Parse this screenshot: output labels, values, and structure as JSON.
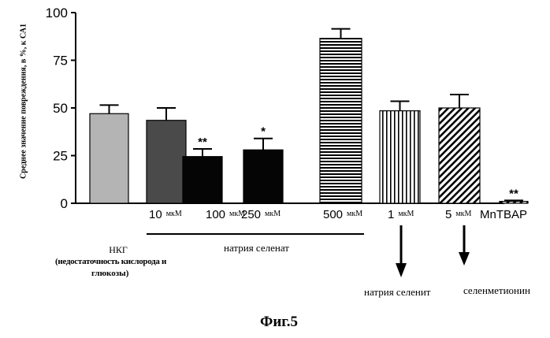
{
  "chart_data": {
    "type": "bar",
    "ylabel": "Среднее значение повреждения, в %, к СА1",
    "ylim": [
      0,
      100
    ],
    "yticks": [
      0,
      25,
      50,
      75,
      100
    ],
    "categories": [
      {
        "label": "НКГ",
        "label_parts": [
          "",
          ""
        ],
        "value": 47,
        "error": 4.5,
        "sig": "",
        "fill": "light-gray"
      },
      {
        "label": "10 мкМ",
        "label_parts": [
          "10",
          "мкМ"
        ],
        "value": 43.5,
        "error": 6.5,
        "sig": "",
        "fill": "dark-gray"
      },
      {
        "label": "100 мкМ",
        "label_parts": [
          "100",
          "мкМ"
        ],
        "value": 24.5,
        "error": 4,
        "sig": "**",
        "fill": "black"
      },
      {
        "label": "250 мкМ",
        "label_parts": [
          "250",
          "мкМ"
        ],
        "value": 28,
        "error": 6,
        "sig": "*",
        "fill": "black"
      },
      {
        "label": "500 мкМ",
        "label_parts": [
          "500",
          "мкМ"
        ],
        "value": 86.5,
        "error": 5,
        "sig": "",
        "fill": "horizontal-stripes"
      },
      {
        "label": "1 мкМ",
        "label_parts": [
          "1",
          "мкМ"
        ],
        "value": 48.5,
        "error": 5,
        "sig": "",
        "fill": "vertical-stripes"
      },
      {
        "label": "5 мкМ",
        "label_parts": [
          "5",
          "мкМ"
        ],
        "value": 50,
        "error": 7,
        "sig": "",
        "fill": "diagonal-stripes"
      },
      {
        "label": "MnTBAP",
        "label_parts": [
          "MnTBAP",
          ""
        ],
        "value": 1,
        "error": 0.5,
        "sig": "**",
        "fill": "diagonal-stripes"
      }
    ],
    "group_labels": {
      "control_line1": "НКГ",
      "control_line2": "(недостаточность кислорода и",
      "control_line3": "глюкозы)",
      "selenate": "натрия селенат",
      "selenite": "натрия селенит",
      "selenomethionine": "селенметионин"
    }
  },
  "figure_caption": "Фиг.5",
  "colors": {
    "light-gray": "#b4b4b4",
    "dark-gray": "#4a4a4a",
    "black": "#050505",
    "axis": "#000000"
  }
}
